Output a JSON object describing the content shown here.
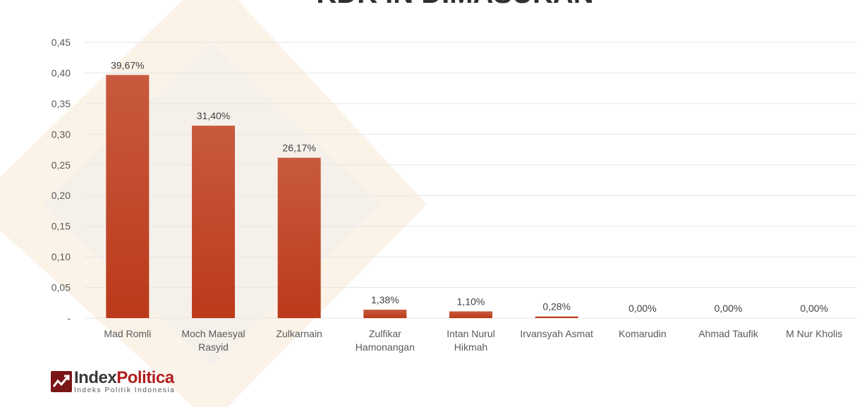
{
  "colors": {
    "bar": "#c0401f",
    "bar_top": "#c85a3e",
    "grid": "#e6e6e6",
    "axis_text": "#595959"
  },
  "chart_data": {
    "type": "bar",
    "title": "KDK IN DIMASUKAN",
    "categories": [
      "Mad Romli",
      "Moch Maesyal Rasyid",
      "Zulkarnain",
      "Zulfikar Hamonangan",
      "Intan Nurul Hikmah",
      "Irvansyah Asmat",
      "Komarudin",
      "Ahmad Taufik",
      "M Nur Kholis"
    ],
    "category_lines": [
      [
        "Mad Romli"
      ],
      [
        "Moch Maesyal",
        "Rasyid"
      ],
      [
        "Zulkarnain"
      ],
      [
        "Zulfikar",
        "Hamonangan"
      ],
      [
        "Intan Nurul",
        "Hikmah"
      ],
      [
        "Irvansyah Asmat"
      ],
      [
        "Komarudin"
      ],
      [
        "Ahmad Taufik"
      ],
      [
        "M Nur Kholis"
      ]
    ],
    "values": [
      0.3967,
      0.314,
      0.2617,
      0.0138,
      0.011,
      0.0028,
      0.0,
      0.0,
      0.0
    ],
    "data_labels": [
      "39,67%",
      "31,40%",
      "26,17%",
      "1,38%",
      "1,10%",
      "0,28%",
      "0,00%",
      "0,00%",
      "0,00%"
    ],
    "ylim": [
      0,
      0.45
    ],
    "yticks": [
      0,
      0.05,
      0.1,
      0.15,
      0.2,
      0.25,
      0.3,
      0.35,
      0.4,
      0.45
    ],
    "ytick_labels": [
      "-",
      "0,05",
      "0,10",
      "0,15",
      "0,20",
      "0,25",
      "0,30",
      "0,35",
      "0,40",
      "0,45"
    ],
    "grid": true,
    "legend": "none"
  },
  "logo": {
    "brand_a": "Index",
    "brand_b": "Politica",
    "tagline": "Indeks Politik Indonesia"
  }
}
